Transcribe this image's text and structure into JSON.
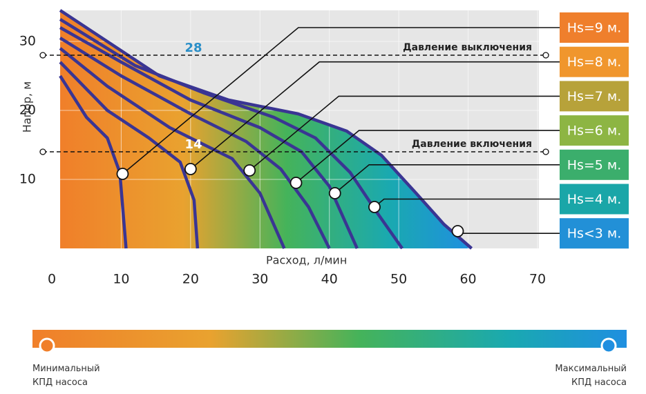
{
  "chart_data": {
    "type": "line",
    "x_label": "Расход, л/мин",
    "y_label": "Напор, м",
    "xlim": [
      0,
      70
    ],
    "ylim": [
      0,
      34.5
    ],
    "xticks": [
      0,
      10,
      20,
      30,
      40,
      50,
      60,
      70
    ],
    "yticks": [
      10,
      20,
      30
    ],
    "grid": true,
    "line_color": "#3a3593",
    "thresholds": [
      {
        "value": 28,
        "label": "Давление выключения"
      },
      {
        "value": 14,
        "label": "Давление включения"
      }
    ],
    "series": [
      {
        "name": "Hs=9 м.",
        "color": "#ef7f2c",
        "x": [
          1.2,
          5,
          8,
          9.8,
          10.7
        ],
        "values": [
          25,
          19,
          16,
          11,
          0
        ],
        "marker_x": 10.2,
        "marker_y": 10.8
      },
      {
        "name": "Hs=8 м.",
        "color": "#f0962d",
        "x": [
          1.2,
          8,
          14,
          18.5,
          20.5,
          21
        ],
        "values": [
          27,
          20,
          16,
          12.5,
          7,
          0
        ],
        "marker_x": 20,
        "marker_y": 11.5
      },
      {
        "name": "Hs=7 м.",
        "color": "#b7a23a",
        "x": [
          1.2,
          8,
          17,
          26,
          30,
          33.5
        ],
        "values": [
          29,
          23.5,
          17.5,
          13,
          8,
          0
        ],
        "marker_x": 28.5,
        "marker_y": 11.3
      },
      {
        "name": "Hs=6 м.",
        "color": "#8db543",
        "x": [
          1.2,
          10,
          20,
          28,
          33,
          37,
          40
        ],
        "values": [
          30.5,
          25,
          19.5,
          15.5,
          11.5,
          6,
          0
        ],
        "marker_x": 35.2,
        "marker_y": 9.5
      },
      {
        "name": "Hs=5 м.",
        "color": "#3bae6c",
        "x": [
          1.2,
          10,
          20,
          30,
          36,
          40,
          44
        ],
        "values": [
          32,
          27,
          21.5,
          17.5,
          14,
          9,
          0
        ],
        "marker_x": 40.8,
        "marker_y": 8
      },
      {
        "name": "Hs=4 м.",
        "color": "#1aa6a8",
        "x": [
          1.2,
          12,
          22,
          32,
          38,
          43,
          47,
          50.5
        ],
        "values": [
          33.2,
          26.5,
          22.5,
          19,
          16,
          11,
          5,
          0
        ],
        "marker_x": 46.5,
        "marker_y": 6
      },
      {
        "name": "Hs<3 м.",
        "color": "#2290d7",
        "x": [
          1.2,
          15.5,
          25.5,
          35.5,
          42.5,
          47.5,
          52.5,
          56.5,
          60.5
        ],
        "values": [
          34.5,
          25,
          21.5,
          19.5,
          17,
          13.5,
          8,
          3.5,
          0
        ],
        "marker_x": 58.5,
        "marker_y": 2.5
      }
    ],
    "scale_min_label": "Минимальный КПД насоса",
    "scale_max_label": "Максимальный КПД насоса"
  }
}
